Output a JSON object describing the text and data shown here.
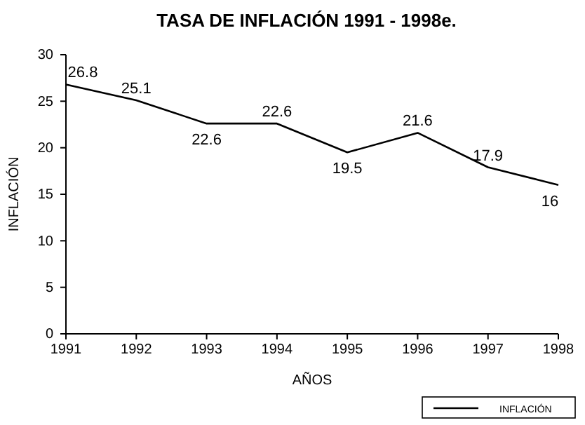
{
  "chart_data": {
    "type": "line",
    "title": "TASA DE INFLACIÓN 1991 - 1998e.",
    "xlabel": "AÑOS",
    "ylabel": "INFLACIÓN",
    "categories": [
      "1991",
      "1992",
      "1993",
      "1994",
      "1995",
      "1996",
      "1997",
      "1998"
    ],
    "series": [
      {
        "name": "INFLACIÓN",
        "color": "#000000",
        "values": [
          26.8,
          25.1,
          22.6,
          22.6,
          19.5,
          21.6,
          17.9,
          16
        ]
      }
    ],
    "ylim": [
      0,
      30
    ],
    "yticks": [
      0,
      5,
      10,
      15,
      20,
      25,
      30
    ],
    "data_labels": true,
    "legend": "bottom right",
    "grid": false,
    "marker": "none",
    "line_style": "solid"
  }
}
